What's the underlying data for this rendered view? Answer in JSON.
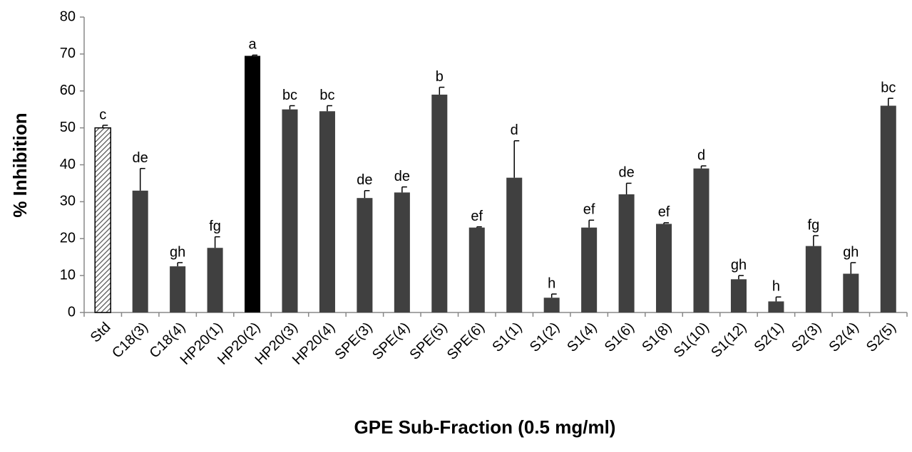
{
  "chart_data": {
    "type": "bar",
    "x_label": "GPE Sub-Fraction (0.5 mg/ml)",
    "y_label": "% Inhibition",
    "categories": [
      "Std",
      "C18(3)",
      "C18(4)",
      "HP20(1)",
      "HP20(2)",
      "HP20(3)",
      "HP20(4)",
      "SPE(3)",
      "SPE(4)",
      "SPE(5)",
      "SPE(6)",
      "S1(1)",
      "S1(2)",
      "S1(4)",
      "S1(6)",
      "S1(8)",
      "S1(10)",
      "S1(12)",
      "S2(1)",
      "S2(3)",
      "S2(4)",
      "S2(5)"
    ],
    "values": [
      50,
      33,
      12.5,
      17.5,
      69.5,
      55,
      54.5,
      31,
      32.5,
      59,
      23,
      36.5,
      4,
      23,
      32,
      24,
      39,
      9,
      3,
      18,
      10.5,
      56
    ],
    "errors": [
      0.7,
      6,
      1,
      3,
      0.2,
      1,
      1.5,
      2,
      1.5,
      2,
      0.2,
      10,
      1,
      2,
      3,
      0.3,
      0.7,
      1,
      1.2,
      2.8,
      3,
      2
    ],
    "annotations": [
      "c",
      "de",
      "gh",
      "fg",
      "a",
      "bc",
      "bc",
      "de",
      "de",
      "b",
      "ef",
      "d",
      "h",
      "ef",
      "de",
      "ef",
      "d",
      "gh",
      "h",
      "fg",
      "gh",
      "bc"
    ],
    "colors": [
      "#ffffff",
      "#404040",
      "#404040",
      "#404040",
      "#000000",
      "#404040",
      "#404040",
      "#404040",
      "#404040",
      "#404040",
      "#404040",
      "#404040",
      "#404040",
      "#404040",
      "#404040",
      "#404040",
      "#404040",
      "#404040",
      "#404040",
      "#404040",
      "#404040",
      "#404040"
    ],
    "hatched_bars": [
      0
    ],
    "ylim": [
      0,
      80
    ],
    "yticks": [
      0,
      10,
      20,
      30,
      40,
      50,
      60,
      70,
      80
    ],
    "grid": false
  }
}
